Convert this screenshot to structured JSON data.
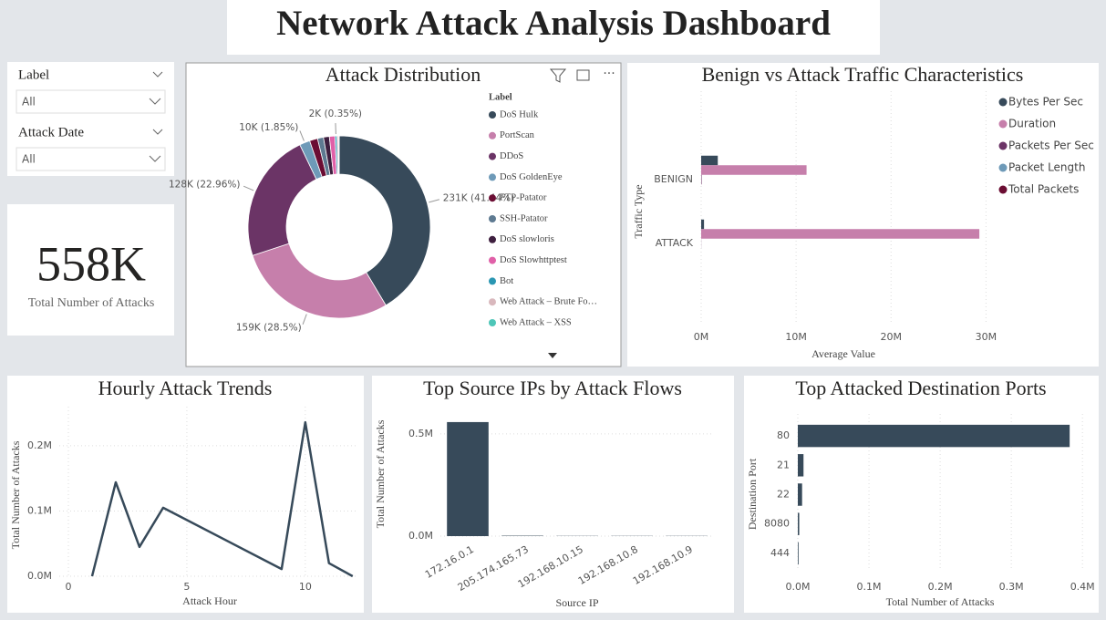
{
  "title": "Network Attack Analysis Dashboard",
  "slicers": [
    {
      "label": "Label",
      "value": "All"
    },
    {
      "label": "Attack Date",
      "value": "All"
    }
  ],
  "card": {
    "value": "558K",
    "label": "Total Number of Attacks"
  },
  "chart_data": [
    {
      "type": "donut",
      "title": "Attack Distribution",
      "legend_title": "Label",
      "categories": [
        "DoS Hulk",
        "PortScan",
        "DDoS",
        "DoS GoldenEye",
        "FTP-Patator",
        "SSH-Patator",
        "DoS slowloris",
        "DoS Slowhttptest",
        "Bot",
        "Web Attack – Brute Fo…",
        "Web Attack – XSS"
      ],
      "values": [
        231.07,
        158.93,
        128.03,
        10.29,
        7.94,
        5.9,
        5.8,
        5.5,
        1.97,
        1.51,
        0.65
      ],
      "value_labels": [
        "231K (41.44%)",
        "159K (28.5%)",
        "128K (22.96%)",
        "10K (1.85%)",
        null,
        null,
        null,
        null,
        "2K (0.35%)",
        null,
        null
      ],
      "colors": [
        "#374a5a",
        "#c67fab",
        "#6b3466",
        "#6e9ab8",
        "#6b0d33",
        "#5e7a91",
        "#3e1f3f",
        "#e060a8",
        "#2a96b2",
        "#d9b8bd",
        "#4ec6b8"
      ]
    },
    {
      "type": "grouped_hbar",
      "title": "Benign vs Attack Traffic Characteristics",
      "categories": [
        "BENIGN",
        "ATTACK"
      ],
      "series": [
        {
          "name": "Bytes Per Sec",
          "color": "#374a5a",
          "values": [
            1.75,
            0.3
          ]
        },
        {
          "name": "Duration",
          "color": "#c67fab",
          "values": [
            11.1,
            29.3
          ]
        },
        {
          "name": "Packets Per Sec",
          "color": "#6b3466",
          "values": [
            0.05,
            0.01
          ]
        },
        {
          "name": "Packet Length",
          "color": "#6e9ab8",
          "values": [
            0,
            0
          ]
        },
        {
          "name": "Total Packets",
          "color": "#6b0d33",
          "values": [
            0,
            0
          ]
        }
      ],
      "xlim": [
        0,
        31.5
      ],
      "xticks": [
        {
          "value": 0,
          "label": "0M"
        },
        {
          "value": 10,
          "label": "10M"
        },
        {
          "value": 20,
          "label": "20M"
        },
        {
          "value": 30,
          "label": "30M"
        }
      ],
      "x_label": "Average Value",
      "y_label": "Traffic Type",
      "grid": true,
      "legend": "right"
    },
    {
      "type": "line",
      "title": "Hourly Attack Trends",
      "x": [
        1,
        2,
        3,
        4,
        9,
        10,
        11,
        12
      ],
      "values": [
        0.0,
        0.144,
        0.045,
        0.105,
        0.011,
        0.236,
        0.02,
        0.0
      ],
      "color": "#374a5a",
      "xlim": [
        0,
        12.2
      ],
      "xticks": [
        0,
        5,
        10
      ],
      "ylim": [
        0,
        0.26
      ],
      "yticks": [
        {
          "value": 0,
          "label": "0.0M"
        },
        {
          "value": 0.1,
          "label": "0.1M"
        },
        {
          "value": 0.2,
          "label": "0.2M"
        }
      ],
      "x_label": "Attack Hour",
      "y_label": "Total Number of Attacks",
      "grid": true
    },
    {
      "type": "bar",
      "title": "Top Source IPs by Attack Flows",
      "categories": [
        "172.16.0.1",
        "205.174.165.73",
        "192.168.10.15",
        "192.168.10.8",
        "192.168.10.9"
      ],
      "values": [
        0.558,
        0.002,
        0.001,
        0.001,
        0.001
      ],
      "color": "#374a5a",
      "ylim": [
        0,
        0.58
      ],
      "yticks": [
        {
          "value": 0,
          "label": "0.0M"
        },
        {
          "value": 0.5,
          "label": "0.5M"
        }
      ],
      "x_label": "Source IP",
      "y_label": "Total Number of Attacks",
      "grid": true
    },
    {
      "type": "hbar",
      "title": "Top Attacked Destination Ports",
      "categories": [
        "80",
        "21",
        "22",
        "8080",
        "444"
      ],
      "values": [
        0.382,
        0.008,
        0.006,
        0.002,
        0.001
      ],
      "color": "#374a5a",
      "xlim": [
        0,
        0.41
      ],
      "xticks": [
        {
          "value": 0,
          "label": "0.0M"
        },
        {
          "value": 0.1,
          "label": "0.1M"
        },
        {
          "value": 0.2,
          "label": "0.2M"
        },
        {
          "value": 0.3,
          "label": "0.3M"
        },
        {
          "value": 0.4,
          "label": "0.4M"
        }
      ],
      "x_label": "Total Number of Attacks",
      "y_label": "Destination Port",
      "grid": true
    }
  ]
}
